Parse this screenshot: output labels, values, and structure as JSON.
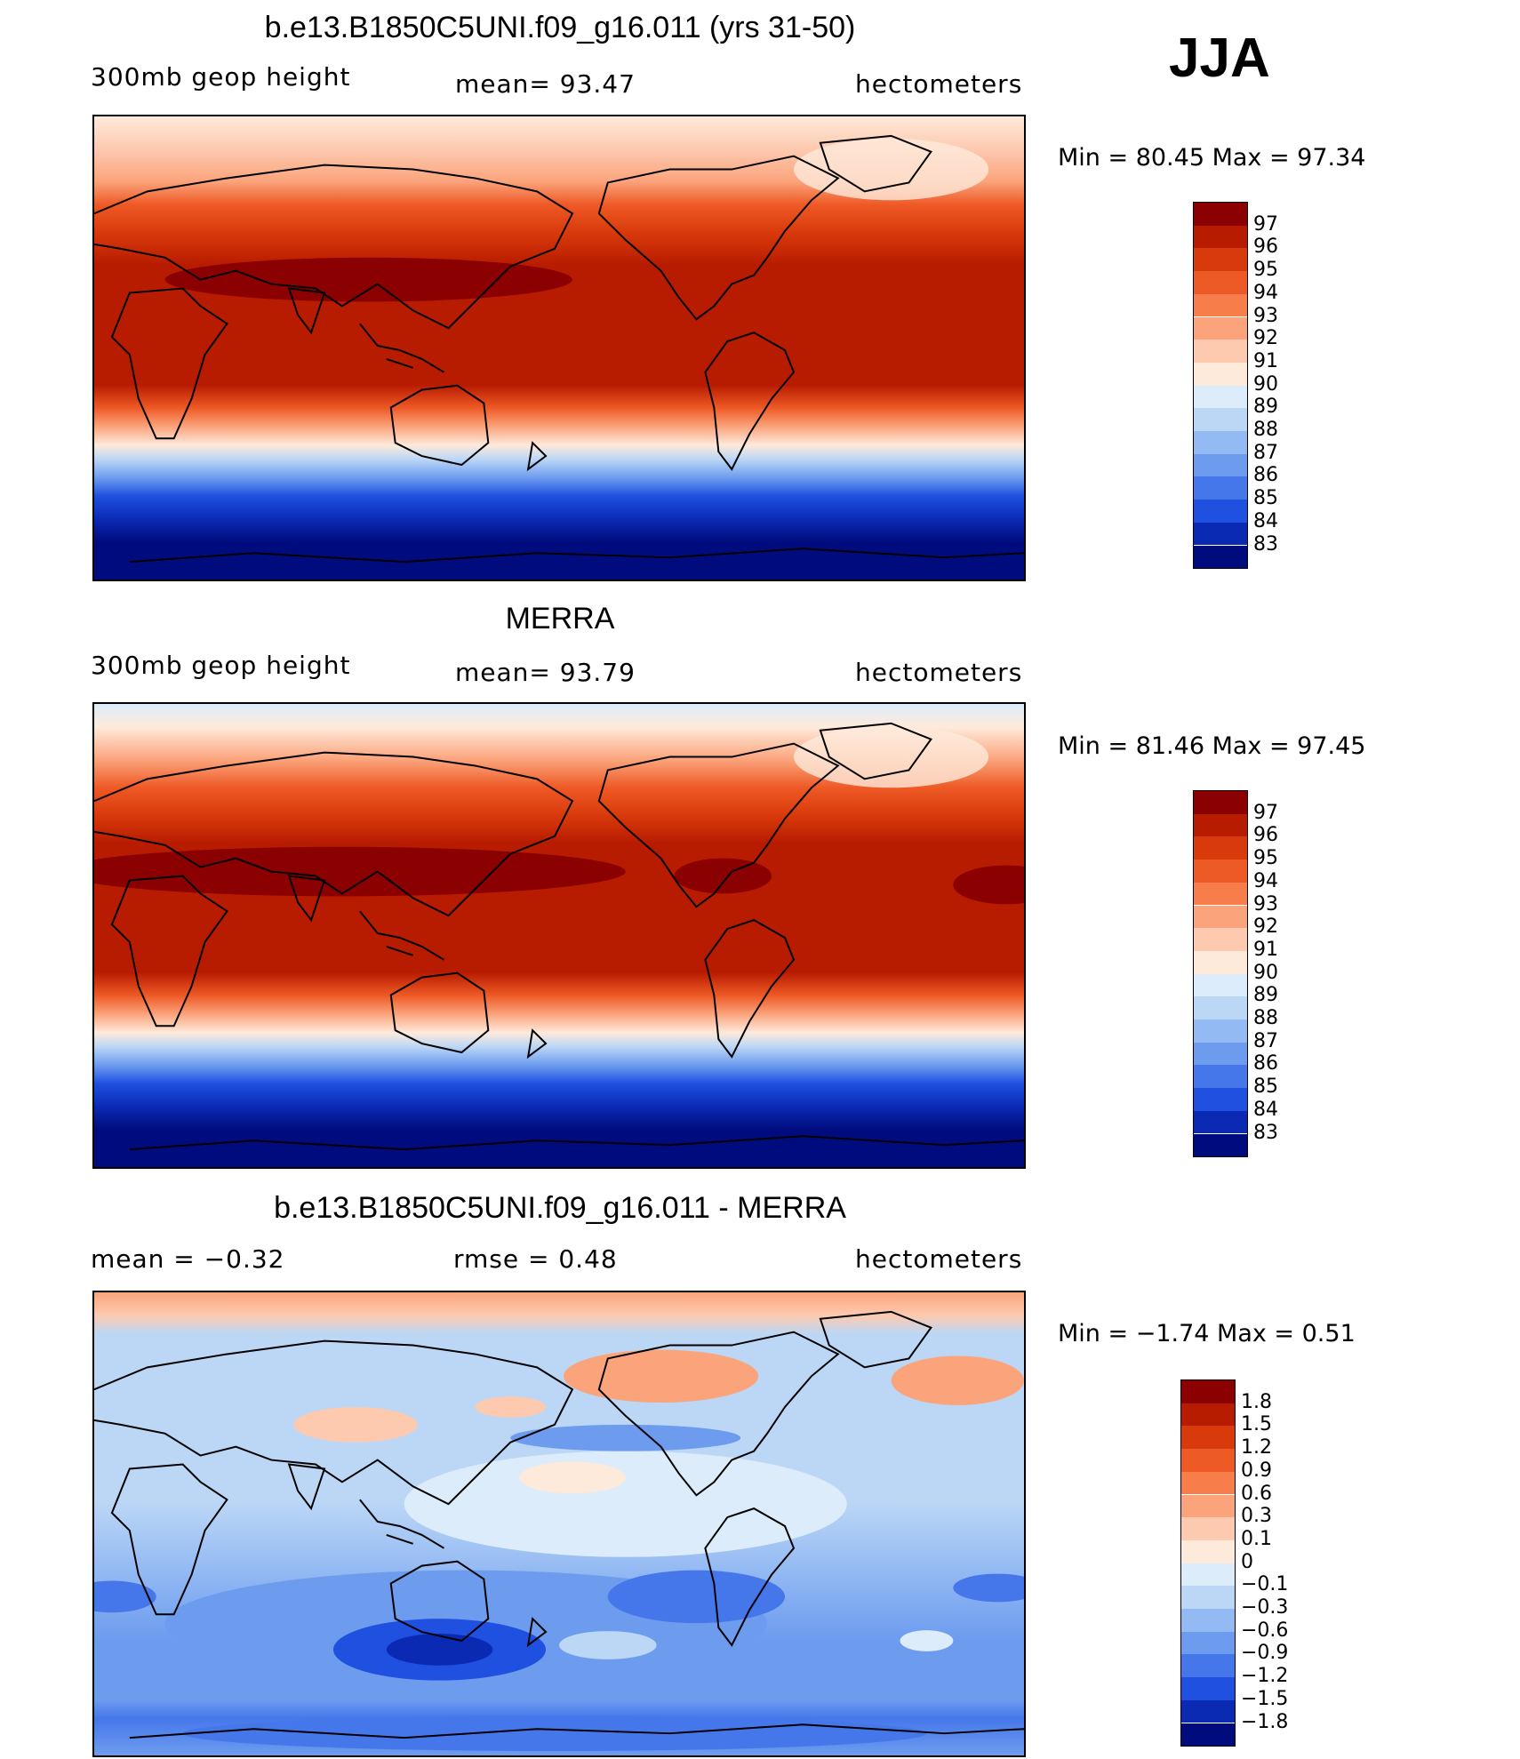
{
  "season": "JJA",
  "panels": [
    {
      "title": "b.e13.B1850C5UNI.f09_g16.011 (yrs 31-50)",
      "left_label": "300mb  geop  height",
      "center_label": "mean=   93.47",
      "right_label": "hectometers",
      "minmax": "Min  =    80.45  Max  =    97.34",
      "colorbar_levels": [
        "97",
        "96",
        "95",
        "94",
        "93",
        "92",
        "91",
        "90",
        "89",
        "88",
        "87",
        "86",
        "85",
        "84",
        "83"
      ],
      "colorbar_colors": [
        "#8b0000",
        "#b81c00",
        "#d93a0b",
        "#ee5a26",
        "#f77e4a",
        "#fba47c",
        "#fdcab0",
        "#feeadb",
        "#dcecfa",
        "#bcd7f6",
        "#94baf3",
        "#6d9cef",
        "#4677ea",
        "#1f50e0",
        "#0a2ab4",
        "#000c7d"
      ]
    },
    {
      "title": "MERRA",
      "left_label": "300mb  geop  height",
      "center_label": "mean=   93.79",
      "right_label": "hectometers",
      "minmax": "Min  =    81.46  Max  =    97.45",
      "colorbar_levels": [
        "97",
        "96",
        "95",
        "94",
        "93",
        "92",
        "91",
        "90",
        "89",
        "88",
        "87",
        "86",
        "85",
        "84",
        "83"
      ],
      "colorbar_colors": [
        "#8b0000",
        "#b81c00",
        "#d93a0b",
        "#ee5a26",
        "#f77e4a",
        "#fba47c",
        "#fdcab0",
        "#feeadb",
        "#dcecfa",
        "#bcd7f6",
        "#94baf3",
        "#6d9cef",
        "#4677ea",
        "#1f50e0",
        "#0a2ab4",
        "#000c7d"
      ]
    },
    {
      "title": "b.e13.B1850C5UNI.f09_g16.011 - MERRA",
      "left_label": "mean =     −0.32",
      "center_label": "rmse  =      0.48",
      "right_label": "hectometers",
      "minmax": "Min  =    −1.74  Max  =      0.51",
      "colorbar_levels": [
        "1.8",
        "1.5",
        "1.2",
        "0.9",
        "0.6",
        "0.3",
        "0.1",
        "0",
        "−0.1",
        "−0.3",
        "−0.6",
        "−0.9",
        "−1.2",
        "−1.5",
        "−1.8"
      ],
      "colorbar_colors": [
        "#8b0000",
        "#b81c00",
        "#d93a0b",
        "#ee5a26",
        "#f77e4a",
        "#fba47c",
        "#fdcab0",
        "#feeadb",
        "#dcecfa",
        "#bcd7f6",
        "#94baf3",
        "#6d9cef",
        "#4677ea",
        "#1f50e0",
        "#0a2ab4",
        "#000c7d"
      ]
    }
  ]
}
